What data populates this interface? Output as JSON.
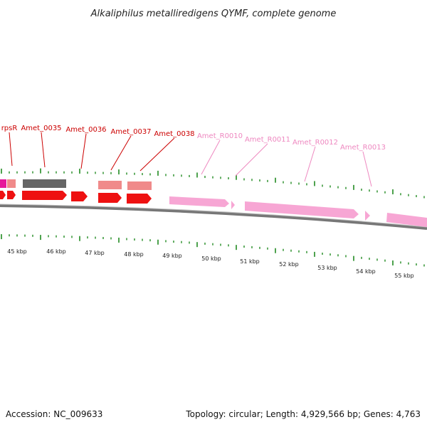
{
  "title": "Alkaliphilus metalliredigens QYMF, complete genome",
  "footer": {
    "accession": "Accession: NC_009633",
    "topology": "Topology: circular; Length: 4,929,566 bp; Genes: 4,763"
  },
  "colors": {
    "cds_red": "#ee1111",
    "cds_pale": "#f08a8a",
    "cds_gray": "#666666",
    "rrna_pink": "#f7a6d4",
    "label_red": "#cc0000",
    "label_pink": "#ee88c0",
    "tick_green": "#228B22",
    "backbone": "#777777",
    "magenta": "#e6199a"
  },
  "gene_labels": [
    {
      "text": "rpsR",
      "type": "cds"
    },
    {
      "text": "Amet_0035",
      "type": "cds"
    },
    {
      "text": "Amet_0036",
      "type": "cds"
    },
    {
      "text": "Amet_0037",
      "type": "cds"
    },
    {
      "text": "Amet_0038",
      "type": "cds"
    },
    {
      "text": "Amet_R0010",
      "type": "rna"
    },
    {
      "text": "Amet_R0011",
      "type": "rna"
    },
    {
      "text": "Amet_R0012",
      "type": "rna"
    },
    {
      "text": "Amet_R0013",
      "type": "rna"
    }
  ],
  "kbp_ticks": [
    "45 kbp",
    "46 kbp",
    "47 kbp",
    "48 kbp",
    "49 kbp",
    "50 kbp",
    "51 kbp",
    "52 kbp",
    "53 kbp",
    "54 kbp",
    "55 kbp"
  ]
}
